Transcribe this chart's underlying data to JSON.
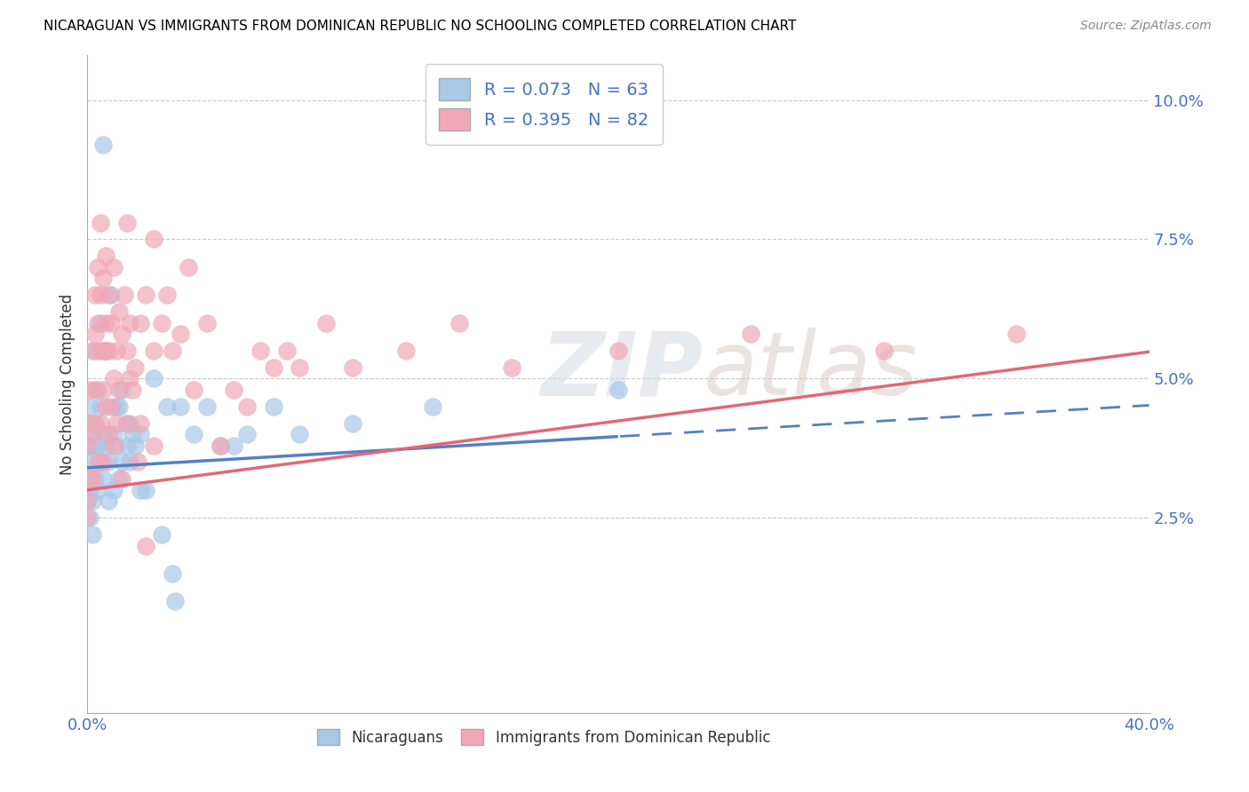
{
  "title": "NICARAGUAN VS IMMIGRANTS FROM DOMINICAN REPUBLIC NO SCHOOLING COMPLETED CORRELATION CHART",
  "source": "Source: ZipAtlas.com",
  "ylabel": "No Schooling Completed",
  "yticks": [
    "2.5%",
    "5.0%",
    "7.5%",
    "10.0%"
  ],
  "ytick_vals": [
    0.025,
    0.05,
    0.075,
    0.1
  ],
  "xlim": [
    0.0,
    0.4
  ],
  "ylim": [
    -0.01,
    0.108
  ],
  "blue_color": "#a8c8e8",
  "pink_color": "#f0a8b8",
  "trend_blue": "#5580c0",
  "trend_pink": "#e06878",
  "nicaraguan_points": [
    [
      0.0,
      0.033
    ],
    [
      0.0,
      0.038
    ],
    [
      0.0,
      0.042
    ],
    [
      0.0,
      0.028
    ],
    [
      0.001,
      0.03
    ],
    [
      0.001,
      0.025
    ],
    [
      0.001,
      0.038
    ],
    [
      0.001,
      0.045
    ],
    [
      0.002,
      0.04
    ],
    [
      0.002,
      0.028
    ],
    [
      0.002,
      0.022
    ],
    [
      0.002,
      0.035
    ],
    [
      0.003,
      0.038
    ],
    [
      0.003,
      0.042
    ],
    [
      0.003,
      0.055
    ],
    [
      0.003,
      0.032
    ],
    [
      0.004,
      0.038
    ],
    [
      0.004,
      0.03
    ],
    [
      0.004,
      0.048
    ],
    [
      0.005,
      0.06
    ],
    [
      0.005,
      0.045
    ],
    [
      0.005,
      0.035
    ],
    [
      0.006,
      0.04
    ],
    [
      0.006,
      0.032
    ],
    [
      0.006,
      0.092
    ],
    [
      0.007,
      0.055
    ],
    [
      0.007,
      0.038
    ],
    [
      0.008,
      0.035
    ],
    [
      0.008,
      0.028
    ],
    [
      0.009,
      0.065
    ],
    [
      0.01,
      0.04
    ],
    [
      0.01,
      0.03
    ],
    [
      0.011,
      0.038
    ],
    [
      0.011,
      0.045
    ],
    [
      0.012,
      0.045
    ],
    [
      0.012,
      0.032
    ],
    [
      0.013,
      0.048
    ],
    [
      0.013,
      0.035
    ],
    [
      0.015,
      0.038
    ],
    [
      0.015,
      0.042
    ],
    [
      0.016,
      0.042
    ],
    [
      0.016,
      0.035
    ],
    [
      0.017,
      0.04
    ],
    [
      0.018,
      0.038
    ],
    [
      0.02,
      0.03
    ],
    [
      0.02,
      0.04
    ],
    [
      0.022,
      0.03
    ],
    [
      0.025,
      0.05
    ],
    [
      0.028,
      0.022
    ],
    [
      0.03,
      0.045
    ],
    [
      0.032,
      0.015
    ],
    [
      0.033,
      0.01
    ],
    [
      0.035,
      0.045
    ],
    [
      0.04,
      0.04
    ],
    [
      0.045,
      0.045
    ],
    [
      0.05,
      0.038
    ],
    [
      0.055,
      0.038
    ],
    [
      0.06,
      0.04
    ],
    [
      0.07,
      0.045
    ],
    [
      0.08,
      0.04
    ],
    [
      0.1,
      0.042
    ],
    [
      0.13,
      0.045
    ],
    [
      0.2,
      0.048
    ]
  ],
  "dominican_points": [
    [
      0.0,
      0.028
    ],
    [
      0.0,
      0.038
    ],
    [
      0.0,
      0.025
    ],
    [
      0.001,
      0.048
    ],
    [
      0.001,
      0.032
    ],
    [
      0.001,
      0.042
    ],
    [
      0.002,
      0.055
    ],
    [
      0.002,
      0.04
    ],
    [
      0.002,
      0.032
    ],
    [
      0.003,
      0.058
    ],
    [
      0.003,
      0.065
    ],
    [
      0.003,
      0.042
    ],
    [
      0.003,
      0.048
    ],
    [
      0.004,
      0.06
    ],
    [
      0.004,
      0.035
    ],
    [
      0.004,
      0.07
    ],
    [
      0.005,
      0.065
    ],
    [
      0.005,
      0.042
    ],
    [
      0.005,
      0.078
    ],
    [
      0.005,
      0.055
    ],
    [
      0.006,
      0.055
    ],
    [
      0.006,
      0.048
    ],
    [
      0.006,
      0.035
    ],
    [
      0.006,
      0.068
    ],
    [
      0.007,
      0.072
    ],
    [
      0.007,
      0.055
    ],
    [
      0.007,
      0.045
    ],
    [
      0.007,
      0.06
    ],
    [
      0.008,
      0.065
    ],
    [
      0.008,
      0.055
    ],
    [
      0.008,
      0.04
    ],
    [
      0.009,
      0.06
    ],
    [
      0.009,
      0.045
    ],
    [
      0.01,
      0.07
    ],
    [
      0.01,
      0.05
    ],
    [
      0.01,
      0.038
    ],
    [
      0.011,
      0.055
    ],
    [
      0.011,
      0.042
    ],
    [
      0.012,
      0.062
    ],
    [
      0.012,
      0.048
    ],
    [
      0.013,
      0.058
    ],
    [
      0.013,
      0.032
    ],
    [
      0.014,
      0.065
    ],
    [
      0.015,
      0.055
    ],
    [
      0.015,
      0.078
    ],
    [
      0.015,
      0.042
    ],
    [
      0.016,
      0.06
    ],
    [
      0.016,
      0.05
    ],
    [
      0.017,
      0.048
    ],
    [
      0.018,
      0.052
    ],
    [
      0.019,
      0.035
    ],
    [
      0.02,
      0.06
    ],
    [
      0.02,
      0.042
    ],
    [
      0.022,
      0.065
    ],
    [
      0.022,
      0.02
    ],
    [
      0.025,
      0.075
    ],
    [
      0.025,
      0.055
    ],
    [
      0.025,
      0.038
    ],
    [
      0.028,
      0.06
    ],
    [
      0.03,
      0.065
    ],
    [
      0.032,
      0.055
    ],
    [
      0.035,
      0.058
    ],
    [
      0.038,
      0.07
    ],
    [
      0.04,
      0.048
    ],
    [
      0.045,
      0.06
    ],
    [
      0.05,
      0.038
    ],
    [
      0.055,
      0.048
    ],
    [
      0.06,
      0.045
    ],
    [
      0.065,
      0.055
    ],
    [
      0.07,
      0.052
    ],
    [
      0.075,
      0.055
    ],
    [
      0.08,
      0.052
    ],
    [
      0.09,
      0.06
    ],
    [
      0.1,
      0.052
    ],
    [
      0.12,
      0.055
    ],
    [
      0.14,
      0.06
    ],
    [
      0.16,
      0.052
    ],
    [
      0.2,
      0.055
    ],
    [
      0.25,
      0.058
    ],
    [
      0.3,
      0.055
    ],
    [
      0.35,
      0.058
    ]
  ]
}
